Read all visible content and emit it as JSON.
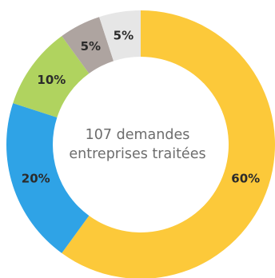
{
  "chart_data": {
    "type": "pie",
    "center_text": [
      "107 demandes",
      "entreprises traitées"
    ],
    "slices": [
      {
        "label": "60%",
        "value": 60,
        "color": "#fcc93a"
      },
      {
        "label": "20%",
        "value": 20,
        "color": "#2fa3e6"
      },
      {
        "label": "10%",
        "value": 10,
        "color": "#b0d35f"
      },
      {
        "label": "5%",
        "value": 5,
        "color": "#aea4a0"
      },
      {
        "label": "5%",
        "value": 5,
        "color": "#e6e6e6"
      }
    ]
  }
}
